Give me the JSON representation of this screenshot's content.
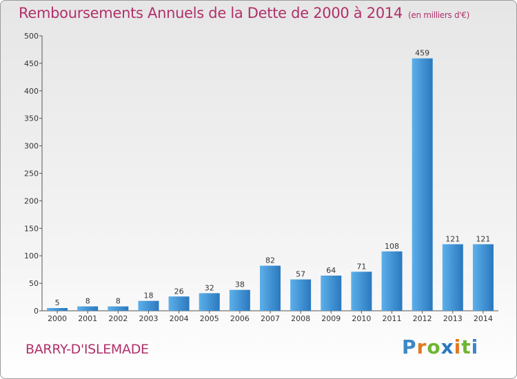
{
  "header": {
    "title": "Remboursements Annuels de la Dette de 2000 à 2014",
    "unit": "(en milliers d'€)"
  },
  "footer": {
    "town": "BARRY-D'ISLEMADE",
    "logo": [
      "P",
      "r",
      "o",
      "x",
      "i",
      "t",
      "i"
    ]
  },
  "colors": {
    "title": "#b0306a",
    "bar_light": "#5db0ea",
    "bar_dark": "#2a78bf",
    "logo": [
      "#3a87c8",
      "#e07a1f",
      "#6fb534",
      "#2a78bf",
      "#e07a1f",
      "#6fb534",
      "#3a87c8"
    ]
  },
  "chart_data": {
    "type": "bar",
    "categories": [
      "2000",
      "2001",
      "2002",
      "2003",
      "2004",
      "2005",
      "2006",
      "2007",
      "2008",
      "2009",
      "2010",
      "2011",
      "2012",
      "2013",
      "2014"
    ],
    "values": [
      5,
      8,
      8,
      18,
      26,
      32,
      38,
      82,
      57,
      64,
      71,
      108,
      459,
      121,
      121
    ],
    "data_labels": [
      "5",
      "8",
      "8",
      "18",
      "26",
      "32",
      "38",
      "82",
      "57",
      "64",
      "71",
      "108",
      "459",
      "121",
      "121"
    ],
    "ylim": [
      0,
      500
    ],
    "yticks": [
      0,
      50,
      100,
      150,
      200,
      250,
      300,
      350,
      400,
      450,
      500
    ],
    "title": "Remboursements Annuels de la Dette de 2000 à 2014",
    "xlabel": "",
    "ylabel": "",
    "grid": false
  }
}
